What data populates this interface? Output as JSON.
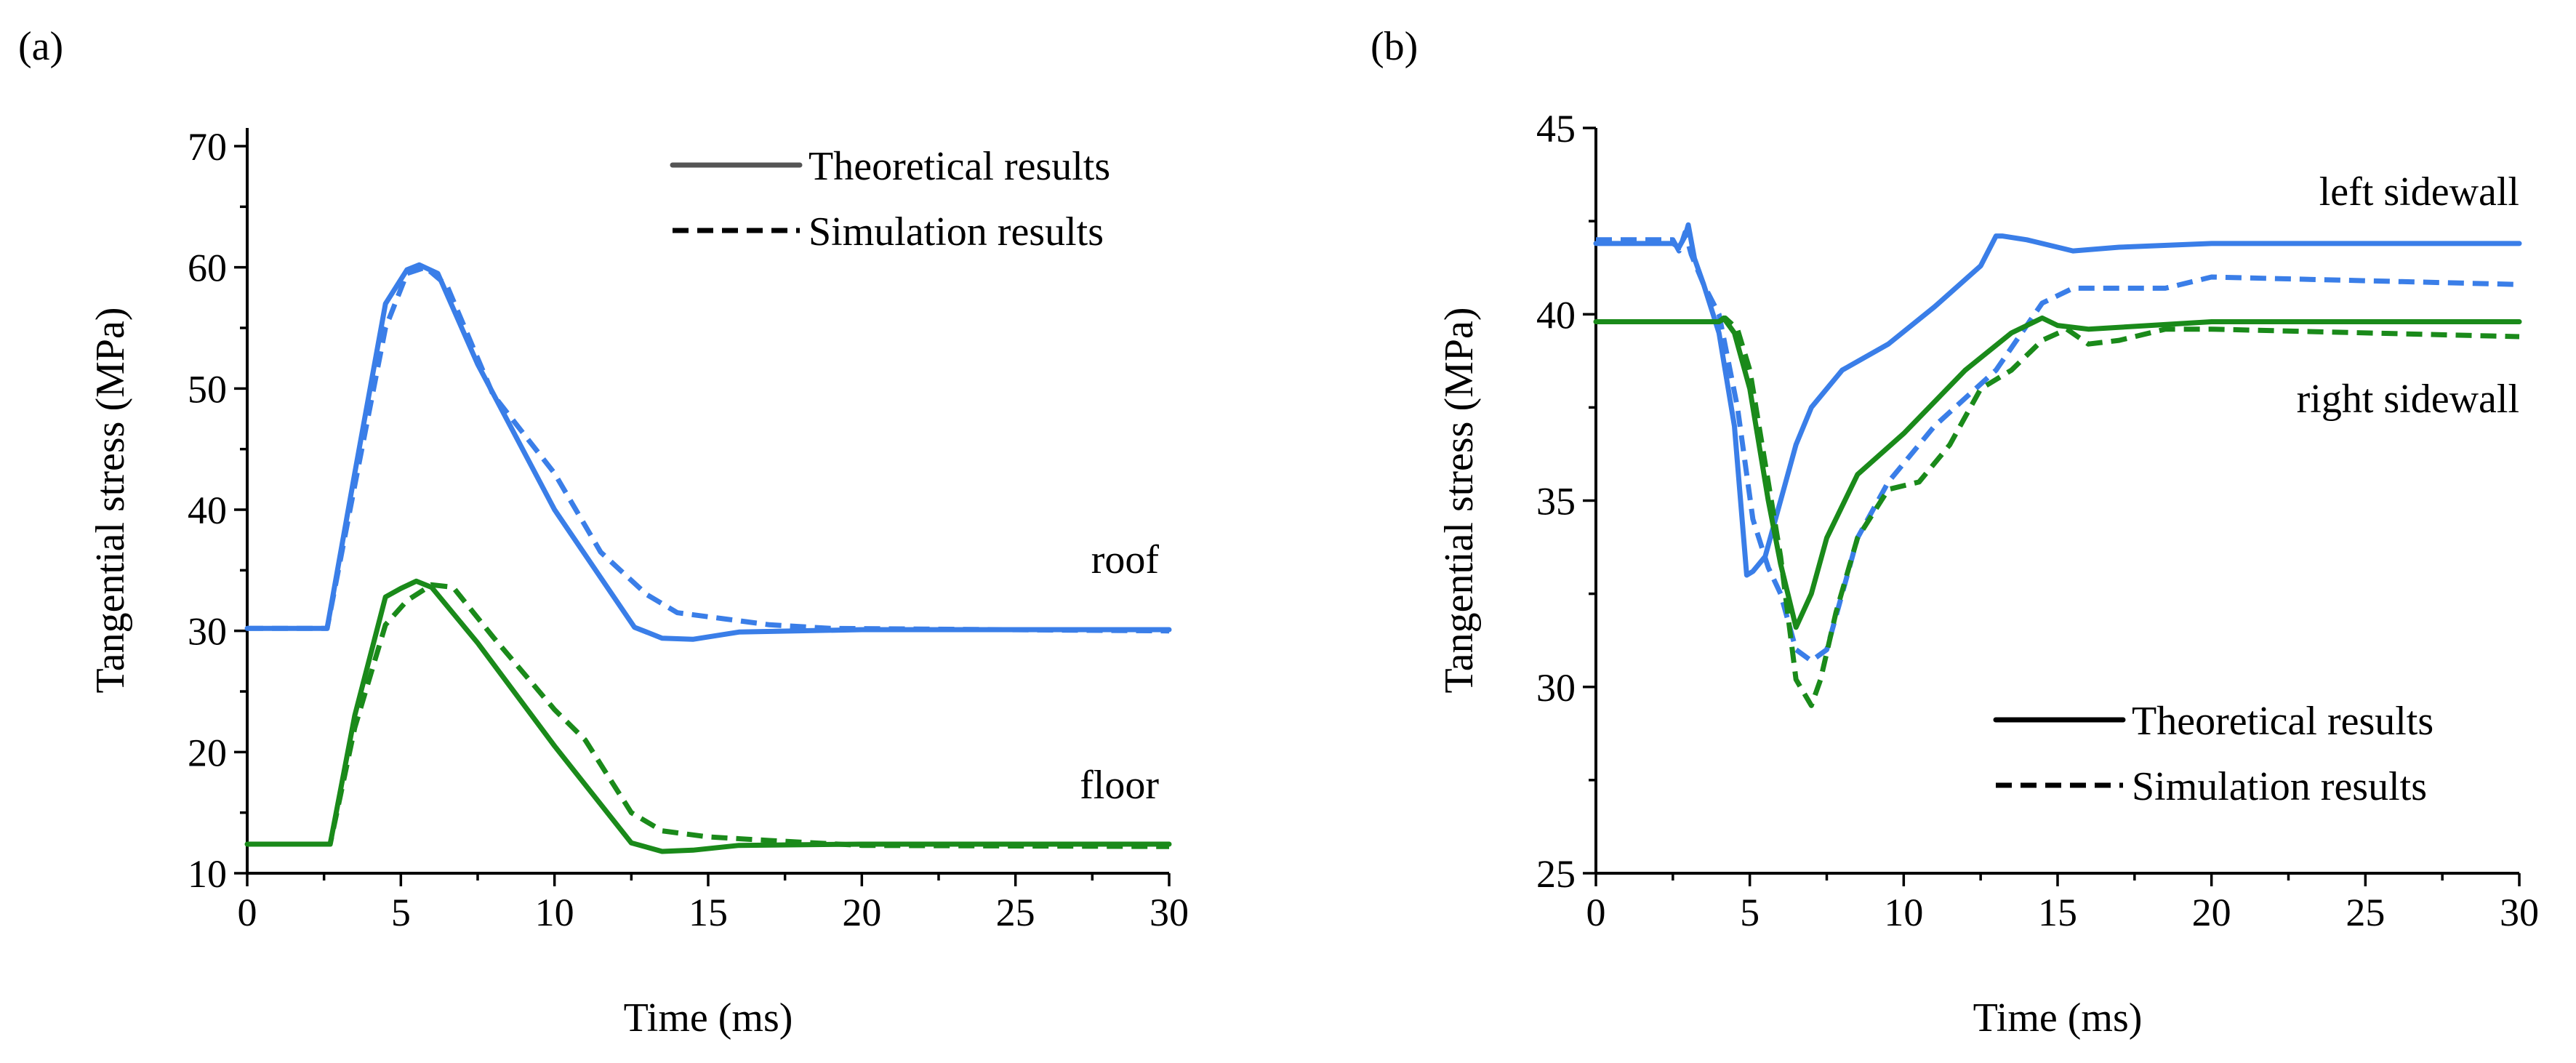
{
  "chart_data": [
    {
      "type": "line",
      "panel_label": "(a)",
      "xlabel": "Time (ms)",
      "ylabel": "Tangential stress (MPa)",
      "xlim": [
        0,
        30
      ],
      "ylim": [
        10,
        70
      ],
      "xticks": [
        0,
        5,
        10,
        15,
        20,
        25,
        30
      ],
      "yticks": [
        10,
        20,
        30,
        40,
        50,
        60,
        70
      ],
      "legend": {
        "placement": "top-right",
        "entries": [
          {
            "label": "Theoretical results",
            "style": "solid"
          },
          {
            "label": "Simulation results",
            "style": "dashed"
          }
        ]
      },
      "series": [
        {
          "name": "roof",
          "label": "roof",
          "style": "solid",
          "color": "#3a7ee8",
          "x": [
            0,
            2.6,
            3.5,
            4.5,
            5.2,
            5.6,
            6.2,
            7.5,
            10,
            12.6,
            13.5,
            14.5,
            16,
            20,
            30
          ],
          "y": [
            30.2,
            30.2,
            43,
            57,
            59.8,
            60.2,
            59.5,
            52,
            40,
            30.3,
            29.4,
            29.3,
            29.9,
            30.1,
            30.1
          ]
        },
        {
          "name": "roof",
          "label": "",
          "style": "dashed",
          "color": "#3a7ee8",
          "x": [
            0,
            2.6,
            3.5,
            4.5,
            5.2,
            5.8,
            6.5,
            8,
            10,
            11.5,
            13,
            14,
            15.5,
            17,
            19,
            30
          ],
          "y": [
            30.2,
            30.2,
            42,
            55,
            59.5,
            60,
            58.5,
            49.5,
            43,
            36.5,
            33,
            31.5,
            31,
            30.5,
            30.2,
            30.0
          ]
        },
        {
          "name": "floor",
          "label": "floor",
          "style": "solid",
          "color": "#1a8a1a",
          "x": [
            0,
            2.7,
            3.5,
            4.5,
            5.0,
            5.5,
            6.0,
            7.5,
            10,
            12.5,
            13.5,
            14.5,
            16,
            20,
            30
          ],
          "y": [
            12.4,
            12.4,
            23,
            32.8,
            33.5,
            34.1,
            33.6,
            29,
            20.5,
            12.5,
            11.8,
            11.9,
            12.3,
            12.4,
            12.4
          ]
        },
        {
          "name": "floor",
          "label": "",
          "style": "dashed",
          "color": "#1a8a1a",
          "x": [
            0,
            2.7,
            3.5,
            4.5,
            5.2,
            6.0,
            6.7,
            8,
            10,
            11,
            12.5,
            13.5,
            15,
            17,
            20,
            30
          ],
          "y": [
            12.4,
            12.4,
            22,
            30.5,
            32.5,
            33.8,
            33.6,
            29.5,
            23.5,
            21,
            15,
            13.5,
            13,
            12.7,
            12.3,
            12.2
          ]
        }
      ]
    },
    {
      "type": "line",
      "panel_label": "(b)",
      "xlabel": "Time (ms)",
      "ylabel": "Tangential stress (MPa)",
      "xlim": [
        0,
        30
      ],
      "ylim": [
        25,
        45
      ],
      "xticks": [
        0,
        5,
        10,
        15,
        20,
        25,
        30
      ],
      "yticks": [
        25,
        30,
        35,
        40,
        45
      ],
      "legend": {
        "placement": "bottom-right",
        "entries": [
          {
            "label": "Theoretical results",
            "style": "solid"
          },
          {
            "label": "Simulation results",
            "style": "dashed"
          }
        ]
      },
      "series": [
        {
          "name": "left sidewall",
          "label": "left sidewall",
          "style": "solid",
          "color": "#3a7ee8",
          "x": [
            0,
            2.5,
            2.7,
            2.9,
            3.0,
            3.2,
            3.5,
            4.0,
            4.5,
            4.9,
            5.1,
            5.5,
            6.0,
            6.5,
            7.0,
            8.0,
            9.5,
            11.0,
            12.5,
            13.0,
            13.2,
            14.0,
            15.5,
            17,
            20,
            30
          ],
          "y": [
            41.9,
            41.9,
            41.8,
            42.1,
            42.4,
            41.5,
            40.8,
            39.5,
            37,
            33,
            33.1,
            33.5,
            35,
            36.5,
            37.5,
            38.5,
            39.2,
            40.2,
            41.3,
            42.1,
            42.1,
            42,
            41.7,
            41.8,
            41.9,
            41.9
          ]
        },
        {
          "name": "left sidewall",
          "label": "",
          "style": "dashed",
          "color": "#3a7ee8",
          "x": [
            0,
            2.5,
            2.7,
            2.9,
            3.1,
            3.5,
            4.0,
            4.6,
            5.1,
            5.6,
            6.0,
            6.5,
            7.0,
            7.5,
            8.0,
            8.5,
            9.5,
            11,
            13,
            14.5,
            15.5,
            17,
            18.5,
            20,
            25,
            30
          ],
          "y": [
            42,
            42,
            41.7,
            42.2,
            41.6,
            40.8,
            40,
            37.5,
            34.5,
            33.2,
            32.5,
            31,
            30.7,
            31,
            32.5,
            34,
            35.5,
            37,
            38.5,
            40.3,
            40.7,
            40.7,
            40.7,
            41,
            40.9,
            40.8
          ]
        },
        {
          "name": "right sidewall",
          "label": "right sidewall",
          "style": "solid",
          "color": "#1a8a1a",
          "x": [
            0,
            4.0,
            4.15,
            4.5,
            5.0,
            5.6,
            6.0,
            6.5,
            7.0,
            7.5,
            8.5,
            10,
            12,
            13.5,
            14.5,
            15,
            16,
            18,
            20,
            30
          ],
          "y": [
            39.8,
            39.8,
            39.9,
            39.5,
            38,
            35,
            33.3,
            31.6,
            32.5,
            34,
            35.7,
            36.8,
            38.5,
            39.5,
            39.9,
            39.7,
            39.6,
            39.7,
            39.8,
            39.8
          ]
        },
        {
          "name": "right sidewall",
          "label": "",
          "style": "dashed",
          "color": "#1a8a1a",
          "x": [
            0,
            4.0,
            4.2,
            4.6,
            5.0,
            5.5,
            6.0,
            6.5,
            7.0,
            7.3,
            7.8,
            8.5,
            9.5,
            10.5,
            11.5,
            12.5,
            13.5,
            14.5,
            15.3,
            16,
            17,
            18.5,
            20,
            30
          ],
          "y": [
            39.8,
            39.8,
            39.9,
            39.6,
            38.5,
            36,
            33.5,
            30.2,
            29.5,
            30.2,
            32,
            34,
            35.3,
            35.5,
            36.5,
            38,
            38.5,
            39.3,
            39.6,
            39.2,
            39.3,
            39.6,
            39.6,
            39.4
          ]
        }
      ]
    }
  ]
}
